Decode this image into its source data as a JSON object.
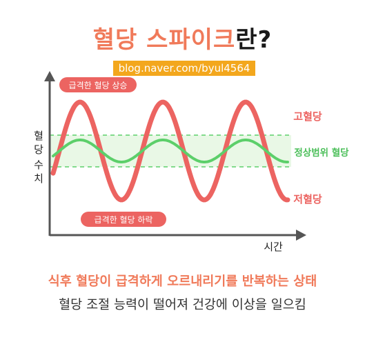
{
  "title": {
    "accent": "혈당 스파이크",
    "rest": "란?"
  },
  "watermark": "blog.naver.com/byul4564",
  "axes": {
    "y_label": "혈당 수치",
    "x_label": "시간"
  },
  "labels": {
    "spike_up": "급격한 혈당 상승",
    "spike_down": "급격한 혈당 하락",
    "high": "고혈당",
    "normal": "정상범위 혈당",
    "low": "저혈당"
  },
  "captions": {
    "headline": "식후 혈당이 급격하게 오르내리기를 반복하는 상태",
    "subline": "혈당 조절 능력이 떨어져 건강에 이상을 일으킴"
  },
  "colors": {
    "accent": "#f07a5a",
    "spike_curve": "#ec6461",
    "normal_curve": "#5ccf6a",
    "normal_band": "#e9f8e6",
    "axis": "#555555"
  }
}
